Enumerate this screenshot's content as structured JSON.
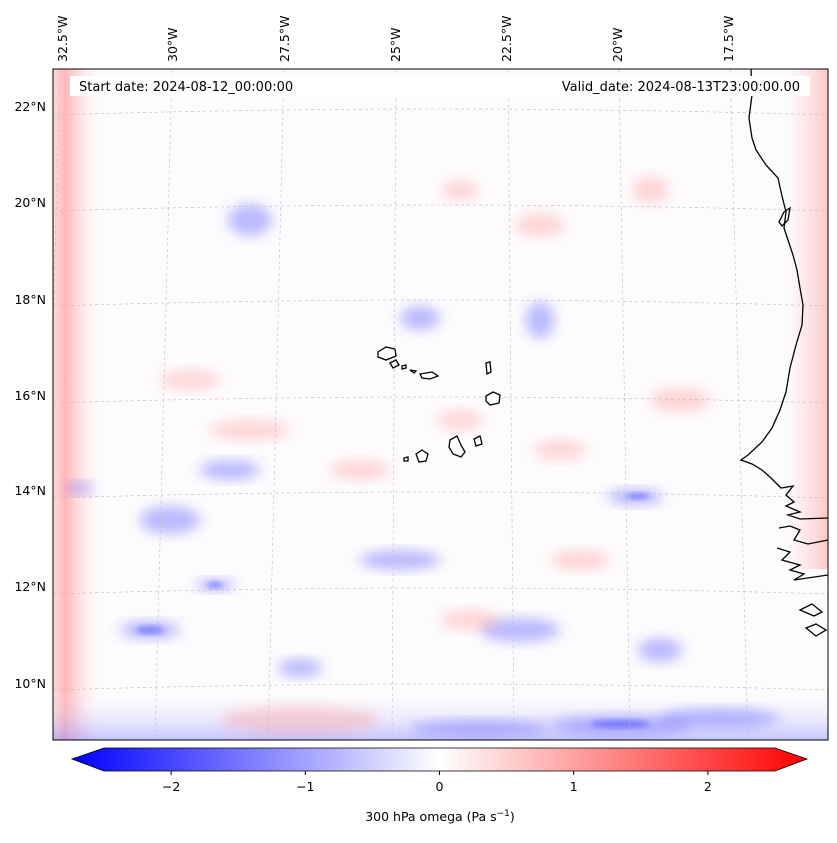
{
  "map": {
    "title_left": "Start date: 2024-08-12_00:00:00",
    "title_right": "Valid_date: 2024-08-13T23:00:00.00",
    "lon_labels": [
      "32.5°W",
      "30°W",
      "27.5°W",
      "25°W",
      "22.5°W",
      "20°W",
      "17.5°W"
    ],
    "lat_labels": [
      "22°N",
      "20°N",
      "18°N",
      "16°N",
      "14°N",
      "12°N",
      "10°N"
    ]
  },
  "colorbar": {
    "label": "300 hPa omega (Pa s",
    "label_sup": "−1",
    "label_close": ")",
    "tick_labels": [
      "−2",
      "−1",
      "0",
      "1",
      "2"
    ],
    "min_value": -2.7,
    "max_value": 2.7,
    "low_color": "#0000ff",
    "mid_color": "#ffffff",
    "high_color": "#ff0000"
  },
  "colors": {
    "coastline": "#000000",
    "gridline": "#bbbbbb"
  }
}
